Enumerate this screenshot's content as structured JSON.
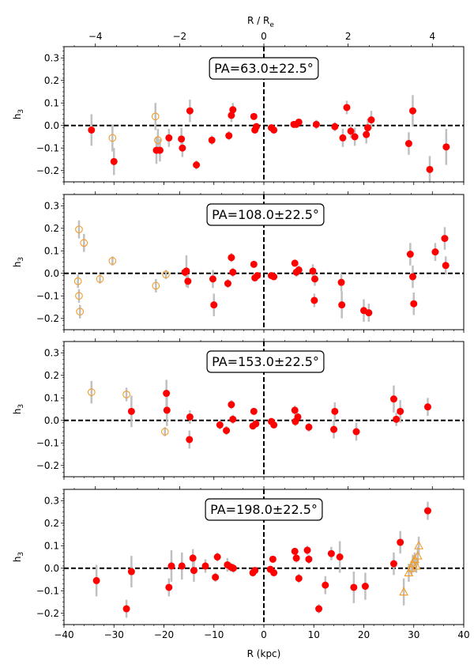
{
  "chart_data": {
    "type": "scatter",
    "x_label": "R (kpc)",
    "top_axis_label": "R / R",
    "top_axis_label_sub": "e",
    "y_label_base": "h",
    "y_label_sub": "3",
    "xlim": [
      -40,
      40
    ],
    "ylim": [
      -0.25,
      0.35
    ],
    "x_ticks": [
      -40,
      -30,
      -20,
      -10,
      0,
      10,
      20,
      30,
      40
    ],
    "x_tick_labels": [
      "−40",
      "−30",
      "−20",
      "−10",
      "0",
      "10",
      "20",
      "30",
      "40"
    ],
    "y_ticks": [
      -0.2,
      -0.1,
      0.0,
      0.1,
      0.2,
      0.3
    ],
    "y_tick_labels": [
      "−0.2",
      "−0.1",
      "0.0",
      "0.1",
      "0.2",
      "0.3"
    ],
    "top_ticks_re": [
      -4,
      -2,
      0,
      2,
      4
    ],
    "top_tick_labels": [
      "−4",
      "−2",
      "0",
      "2",
      "4"
    ],
    "kpc_per_re": 8.43,
    "colors": {
      "filled": "#ff0000",
      "open": "#f29b25",
      "error": "#c0c0c0"
    },
    "panels": [
      {
        "label": "PA=63.0±22.5°",
        "series": [
          {
            "name": "filled",
            "marker": "filled-circle",
            "points": [
              {
                "x": -34.5,
                "y": -0.02,
                "err": 0.07
              },
              {
                "x": -30.0,
                "y": -0.16,
                "err": 0.06
              },
              {
                "x": -21.5,
                "y": -0.11,
                "err": 0.06
              },
              {
                "x": -20.8,
                "y": -0.11,
                "err": 0.05
              },
              {
                "x": -19.0,
                "y": -0.055,
                "err": 0.04
              },
              {
                "x": -16.5,
                "y": -0.06,
                "err": 0.05
              },
              {
                "x": -16.3,
                "y": -0.1,
                "err": 0.04
              },
              {
                "x": -14.8,
                "y": 0.065,
                "err": 0.05
              },
              {
                "x": -13.5,
                "y": -0.175,
                "err": 0.02
              },
              {
                "x": -10.4,
                "y": -0.065,
                "err": 0.02
              },
              {
                "x": -7.0,
                "y": -0.045,
                "err": 0.02
              },
              {
                "x": -6.5,
                "y": 0.045,
                "err": 0.03
              },
              {
                "x": -6.2,
                "y": 0.07,
                "err": 0.03
              },
              {
                "x": -2.0,
                "y": 0.04,
                "err": 0.01
              },
              {
                "x": -1.8,
                "y": -0.02,
                "err": 0.01
              },
              {
                "x": -1.5,
                "y": -0.005,
                "err": 0.01
              },
              {
                "x": 1.5,
                "y": -0.01,
                "err": 0.01
              },
              {
                "x": 2.0,
                "y": -0.02,
                "err": 0.01
              },
              {
                "x": 6.0,
                "y": 0.005,
                "err": 0.01
              },
              {
                "x": 6.5,
                "y": 0.005,
                "err": 0.01
              },
              {
                "x": 7.0,
                "y": 0.015,
                "err": 0.01
              },
              {
                "x": 10.5,
                "y": 0.005,
                "err": 0.02
              },
              {
                "x": 14.2,
                "y": -0.005,
                "err": 0.02
              },
              {
                "x": 15.8,
                "y": -0.055,
                "err": 0.04
              },
              {
                "x": 16.6,
                "y": 0.08,
                "err": 0.03
              },
              {
                "x": 17.4,
                "y": -0.025,
                "err": 0.03
              },
              {
                "x": 18.2,
                "y": -0.05,
                "err": 0.04
              },
              {
                "x": 20.5,
                "y": -0.04,
                "err": 0.04
              },
              {
                "x": 20.8,
                "y": -0.01,
                "err": 0.04
              },
              {
                "x": 21.5,
                "y": 0.025,
                "err": 0.04
              },
              {
                "x": 29.0,
                "y": -0.08,
                "err": 0.05
              },
              {
                "x": 29.8,
                "y": 0.065,
                "err": 0.07
              },
              {
                "x": 33.2,
                "y": -0.195,
                "err": 0.06
              },
              {
                "x": 36.5,
                "y": -0.095,
                "err": 0.08
              }
            ]
          },
          {
            "name": "open",
            "marker": "open-circle",
            "points": [
              {
                "x": -30.3,
                "y": -0.055,
                "err": 0.06
              },
              {
                "x": -21.7,
                "y": 0.04,
                "err": 0.06
              },
              {
                "x": -21.2,
                "y": -0.065,
                "err": 0.05
              }
            ]
          }
        ]
      },
      {
        "label": "PA=108.0±22.5°",
        "series": [
          {
            "name": "filled",
            "marker": "filled-circle",
            "points": [
              {
                "x": -15.8,
                "y": 0.005,
                "err": 0.02
              },
              {
                "x": -15.5,
                "y": 0.01,
                "err": 0.07
              },
              {
                "x": -15.2,
                "y": -0.035,
                "err": 0.03
              },
              {
                "x": -10.2,
                "y": -0.025,
                "err": 0.04
              },
              {
                "x": -10.0,
                "y": -0.14,
                "err": 0.05
              },
              {
                "x": -7.2,
                "y": -0.045,
                "err": 0.02
              },
              {
                "x": -6.5,
                "y": 0.07,
                "err": 0.02
              },
              {
                "x": -6.2,
                "y": 0.005,
                "err": 0.02
              },
              {
                "x": -2.0,
                "y": 0.04,
                "err": 0.01
              },
              {
                "x": -1.8,
                "y": -0.02,
                "err": 0.01
              },
              {
                "x": -1.3,
                "y": -0.01,
                "err": 0.01
              },
              {
                "x": 1.5,
                "y": -0.01,
                "err": 0.01
              },
              {
                "x": 2.0,
                "y": -0.015,
                "err": 0.01
              },
              {
                "x": 6.2,
                "y": 0.045,
                "err": 0.01
              },
              {
                "x": 6.5,
                "y": 0.005,
                "err": 0.02
              },
              {
                "x": 7.0,
                "y": 0.015,
                "err": 0.02
              },
              {
                "x": 9.8,
                "y": 0.01,
                "err": 0.03
              },
              {
                "x": 10.2,
                "y": -0.025,
                "err": 0.03
              },
              {
                "x": 10.1,
                "y": -0.12,
                "err": 0.03
              },
              {
                "x": 15.5,
                "y": -0.04,
                "err": 0.04
              },
              {
                "x": 15.6,
                "y": -0.14,
                "err": 0.06
              },
              {
                "x": 20.0,
                "y": -0.165,
                "err": 0.05
              },
              {
                "x": 21.0,
                "y": -0.175,
                "err": 0.04
              },
              {
                "x": 29.3,
                "y": 0.085,
                "err": 0.05
              },
              {
                "x": 29.8,
                "y": -0.015,
                "err": 0.05
              },
              {
                "x": 30.0,
                "y": -0.135,
                "err": 0.05
              },
              {
                "x": 34.3,
                "y": 0.095,
                "err": 0.04
              },
              {
                "x": 36.2,
                "y": 0.155,
                "err": 0.05
              },
              {
                "x": 36.4,
                "y": 0.035,
                "err": 0.04
              }
            ]
          },
          {
            "name": "open",
            "marker": "open-circle",
            "points": [
              {
                "x": -37.0,
                "y": 0.195,
                "err": 0.04
              },
              {
                "x": -36.0,
                "y": 0.135,
                "err": 0.04
              },
              {
                "x": -37.2,
                "y": -0.035,
                "err": 0.03
              },
              {
                "x": -37.0,
                "y": -0.1,
                "err": 0.03
              },
              {
                "x": -36.8,
                "y": -0.17,
                "err": 0.03
              },
              {
                "x": -32.8,
                "y": -0.025,
                "err": 0.02
              },
              {
                "x": -30.3,
                "y": 0.055,
                "err": 0.02
              },
              {
                "x": -21.6,
                "y": -0.055,
                "err": 0.03
              },
              {
                "x": -19.6,
                "y": -0.005,
                "err": 0.02
              }
            ]
          }
        ]
      },
      {
        "label": "PA=153.0±22.5°",
        "series": [
          {
            "name": "filled",
            "marker": "filled-circle",
            "points": [
              {
                "x": -26.5,
                "y": 0.04,
                "err": 0.07
              },
              {
                "x": -19.5,
                "y": 0.12,
                "err": 0.06
              },
              {
                "x": -19.4,
                "y": 0.045,
                "err": 0.07
              },
              {
                "x": -14.8,
                "y": 0.015,
                "err": 0.03
              },
              {
                "x": -14.9,
                "y": -0.085,
                "err": 0.04
              },
              {
                "x": -8.8,
                "y": -0.02,
                "err": 0.02
              },
              {
                "x": -7.5,
                "y": -0.045,
                "err": 0.02
              },
              {
                "x": -6.5,
                "y": 0.07,
                "err": 0.02
              },
              {
                "x": -6.2,
                "y": 0.005,
                "err": 0.02
              },
              {
                "x": -2.0,
                "y": 0.04,
                "err": 0.01
              },
              {
                "x": -2.2,
                "y": -0.025,
                "err": 0.01
              },
              {
                "x": -1.6,
                "y": -0.015,
                "err": 0.01
              },
              {
                "x": 1.5,
                "y": -0.005,
                "err": 0.01
              },
              {
                "x": 2.0,
                "y": -0.02,
                "err": 0.01
              },
              {
                "x": 6.2,
                "y": 0.045,
                "err": 0.02
              },
              {
                "x": 6.3,
                "y": -0.005,
                "err": 0.02
              },
              {
                "x": 6.8,
                "y": 0.015,
                "err": 0.02
              },
              {
                "x": 9.0,
                "y": -0.03,
                "err": 0.02
              },
              {
                "x": 14.2,
                "y": 0.04,
                "err": 0.04
              },
              {
                "x": 14.0,
                "y": -0.04,
                "err": 0.04
              },
              {
                "x": 18.5,
                "y": -0.05,
                "err": 0.04
              },
              {
                "x": 26.0,
                "y": 0.095,
                "err": 0.06
              },
              {
                "x": 26.5,
                "y": 0.005,
                "err": 0.03
              },
              {
                "x": 27.3,
                "y": 0.04,
                "err": 0.05
              },
              {
                "x": 32.8,
                "y": 0.06,
                "err": 0.04
              }
            ]
          },
          {
            "name": "open",
            "marker": "open-circle",
            "points": [
              {
                "x": -34.5,
                "y": 0.125,
                "err": 0.05
              },
              {
                "x": -27.5,
                "y": 0.115,
                "err": 0.03
              },
              {
                "x": -19.8,
                "y": -0.05,
                "err": 0.02
              }
            ]
          }
        ]
      },
      {
        "label": "PA=198.0±22.5°",
        "series": [
          {
            "name": "filled",
            "marker": "filled-circle",
            "points": [
              {
                "x": -33.5,
                "y": -0.055,
                "err": 0.07
              },
              {
                "x": -27.5,
                "y": -0.18,
                "err": 0.04
              },
              {
                "x": -26.5,
                "y": -0.015,
                "err": 0.07
              },
              {
                "x": -19.0,
                "y": -0.085,
                "err": 0.04
              },
              {
                "x": -18.5,
                "y": 0.01,
                "err": 0.07
              },
              {
                "x": -16.4,
                "y": 0.01,
                "err": 0.06
              },
              {
                "x": -14.2,
                "y": 0.045,
                "err": 0.04
              },
              {
                "x": -14.0,
                "y": -0.01,
                "err": 0.05
              },
              {
                "x": -11.7,
                "y": 0.01,
                "err": 0.03
              },
              {
                "x": -9.3,
                "y": 0.05,
                "err": 0.02
              },
              {
                "x": -9.7,
                "y": -0.04,
                "err": 0.02
              },
              {
                "x": -7.3,
                "y": 0.015,
                "err": 0.03
              },
              {
                "x": -6.6,
                "y": 0.005,
                "err": 0.02
              },
              {
                "x": -6.1,
                "y": 0.0,
                "err": 0.02
              },
              {
                "x": -2.2,
                "y": -0.02,
                "err": 0.01
              },
              {
                "x": -1.8,
                "y": -0.01,
                "err": 0.01
              },
              {
                "x": 1.3,
                "y": -0.005,
                "err": 0.01
              },
              {
                "x": 1.8,
                "y": 0.04,
                "err": 0.01
              },
              {
                "x": 2.0,
                "y": -0.02,
                "err": 0.01
              },
              {
                "x": 6.2,
                "y": 0.075,
                "err": 0.01
              },
              {
                "x": 6.5,
                "y": 0.045,
                "err": 0.02
              },
              {
                "x": 7.0,
                "y": -0.045,
                "err": 0.02
              },
              {
                "x": 8.7,
                "y": 0.08,
                "err": 0.02
              },
              {
                "x": 9.0,
                "y": 0.04,
                "err": 0.02
              },
              {
                "x": 11.0,
                "y": -0.18,
                "err": 0.02
              },
              {
                "x": 12.3,
                "y": -0.075,
                "err": 0.04
              },
              {
                "x": 13.5,
                "y": 0.065,
                "err": 0.03
              },
              {
                "x": 15.2,
                "y": 0.05,
                "err": 0.07
              },
              {
                "x": 18.0,
                "y": -0.085,
                "err": 0.07
              },
              {
                "x": 20.3,
                "y": -0.08,
                "err": 0.06
              },
              {
                "x": 26.0,
                "y": 0.02,
                "err": 0.05
              },
              {
                "x": 27.3,
                "y": 0.115,
                "err": 0.05
              },
              {
                "x": 32.8,
                "y": 0.255,
                "err": 0.04
              }
            ]
          },
          {
            "name": "open",
            "marker": "open-triangle",
            "points": [
              {
                "x": 28.0,
                "y": -0.105,
                "err": 0.06
              },
              {
                "x": 29.0,
                "y": -0.02,
                "err": 0.04
              },
              {
                "x": 29.5,
                "y": 0.0,
                "err": 0.03
              },
              {
                "x": 29.8,
                "y": 0.02,
                "err": 0.04
              },
              {
                "x": 30.2,
                "y": 0.04,
                "err": 0.03
              },
              {
                "x": 30.5,
                "y": 0.01,
                "err": 0.03
              },
              {
                "x": 30.8,
                "y": 0.055,
                "err": 0.04
              },
              {
                "x": 31.0,
                "y": 0.1,
                "err": 0.04
              }
            ]
          }
        ]
      }
    ]
  }
}
